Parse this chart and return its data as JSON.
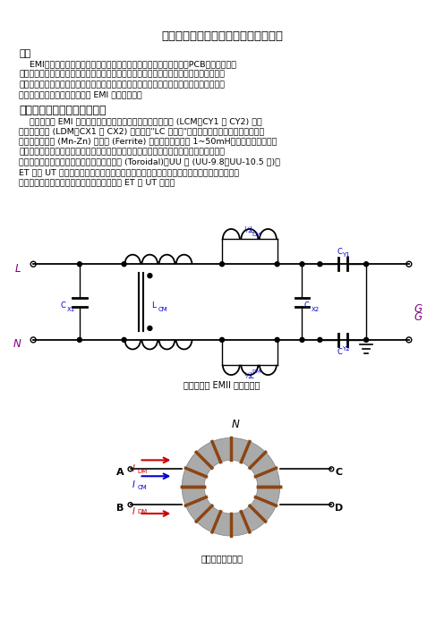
{
  "title": "利用混成式共模电感抑制传导电磁干扰",
  "section_abstract": "摘要",
  "abstract_lines": [
    "    EMI抑制方案有许多组合，包括滤波器组合、变压器绕线安排，甚至PCB布局。本文提",
    "供一种结合共模电感与差模电感的磁混成，称之为混成式共模电感器。不仅保留共模电感的",
    "高阻抗特性，同时利用其很高漏电感当成差模电感用。不仅可以缩小体积节省滤波器成本，",
    "更提供了工程师快速解决传导型 EMI 问题的方法。"
  ],
  "section2_title": "混成式共模电感的原理与功能",
  "section2_lines": [
    "    在常规单级 EMI 滤波器电路中，如图一，有共模噪声滤波器 (LCM、CY1 与 CY2) 与差",
    "模噪声滤波器 (LDM、CX1 与 CX2) 分别形成\"LC 滤波器\"衰减共模与差模噪声。共模电感通",
    "常以高导磁锰锌 (Mn-Zn) 铁氧体 (Ferrite) 制成，电感值可达 1~50mH。共模电感器，如图",
    "二，由于绕线极性安排，虽然两组线圈分别流过负载电流，但铁芯内部磁力线互相抵消，一",
    "般不存在铁芯饱和的问题。常用的铁芯有环型 (Toroidal)、UU 型 (UU-9.8、UU-10.5 等)、",
    "ET 型与 UT 型，如图三。为了获得足够的共模电感值，要尽量让两组线圈的耦合达到最好，",
    "所以多采用施工成本较高的环型或一体成型的 ET 与 UT 铁芯。"
  ],
  "fig1_caption": "图一、常规 EMII 滤波器结构",
  "fig2_caption": "图二、共模电感器",
  "background_color": "#ffffff",
  "text_color": "#000000",
  "purple_color": "#800080",
  "blue_color": "#0000CC",
  "red_color": "#CC0000",
  "brown_color": "#8B4513",
  "gray_color": "#AAAAAA"
}
